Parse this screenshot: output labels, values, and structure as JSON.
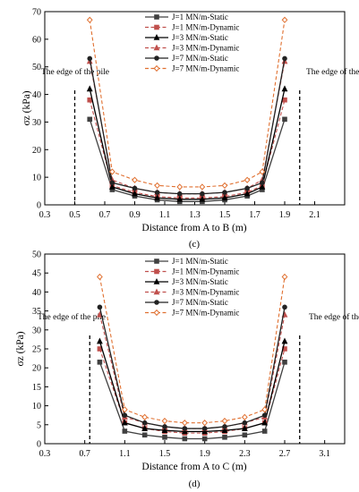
{
  "chart_data": [
    {
      "type": "line",
      "panel_label": "(c)",
      "xlabel": "Distance from A to B (m)",
      "ylabel": "σz (kPa)",
      "xlim": [
        0.3,
        2.3
      ],
      "ylim": [
        0,
        70
      ],
      "x_ticks": [
        "0.3",
        "0.5",
        "0.7",
        "0.9",
        "1.1",
        "1.3",
        "1.5",
        "1.7",
        "1.9",
        "2.1"
      ],
      "y_ticks": [
        "0",
        "10",
        "20",
        "30",
        "40",
        "50",
        "60",
        "70"
      ],
      "grid": false,
      "legend_position": "top-center",
      "pile_edges": [
        0.5,
        2.0
      ],
      "annotations": [
        "The edge of the pile",
        "The edge of the pile"
      ],
      "x": [
        0.6,
        0.75,
        0.9,
        1.05,
        1.2,
        1.35,
        1.5,
        1.65,
        1.75,
        1.9
      ],
      "series": [
        {
          "name": "J=1 MN/m-Static",
          "style": "solid",
          "color": "#404040",
          "marker": "square",
          "values": [
            31,
            5.5,
            3.2,
            1.8,
            1.2,
            1.2,
            1.8,
            3.2,
            5.5,
            31
          ]
        },
        {
          "name": "J=1 MN/m-Dynamic",
          "style": "dashed",
          "color": "#c0504d",
          "marker": "square",
          "values": [
            38,
            7,
            4.5,
            3,
            2.5,
            2.5,
            3,
            4.5,
            7,
            38
          ]
        },
        {
          "name": "J=3 MN/m-Static",
          "style": "solid",
          "color": "#000000",
          "marker": "triangle",
          "values": [
            42,
            6.5,
            4,
            2.5,
            2,
            2,
            2.5,
            4,
            6.5,
            42
          ]
        },
        {
          "name": "J=3 MN/m-Dynamic",
          "style": "dashed",
          "color": "#c0504d",
          "marker": "triangle",
          "values": [
            52,
            9,
            6,
            4.5,
            4,
            4,
            4.5,
            6,
            9,
            52
          ]
        },
        {
          "name": "J=7 MN/m-Static",
          "style": "solid",
          "color": "#222222",
          "marker": "circle",
          "values": [
            53,
            8,
            6,
            4.5,
            4,
            4,
            4.5,
            6,
            8,
            53
          ]
        },
        {
          "name": "J=7 MN/m-Dynamic",
          "style": "dashed",
          "color": "#e07030",
          "marker": "diamond",
          "values": [
            67,
            12,
            9,
            7,
            6.5,
            6.5,
            7,
            9,
            12,
            67
          ]
        }
      ]
    },
    {
      "type": "line",
      "panel_label": "(d)",
      "xlabel": "Distance from A to C (m)",
      "ylabel": "σz (kPa)",
      "xlim": [
        0.3,
        3.3
      ],
      "ylim": [
        0,
        50
      ],
      "x_ticks": [
        "0.3",
        "0.7",
        "1.1",
        "1.5",
        "1.9",
        "2.3",
        "2.7",
        "3.1"
      ],
      "y_ticks": [
        "0",
        "5",
        "10",
        "15",
        "20",
        "25",
        "30",
        "35",
        "40",
        "45",
        "50"
      ],
      "grid": false,
      "legend_position": "top-center",
      "pile_edges": [
        0.75,
        2.85
      ],
      "annotations": [
        "The edge of the pile",
        "The edge of the pile"
      ],
      "x": [
        0.85,
        1.1,
        1.3,
        1.5,
        1.7,
        1.9,
        2.1,
        2.3,
        2.5,
        2.7
      ],
      "series": [
        {
          "name": "J=1 MN/m-Static",
          "style": "solid",
          "color": "#404040",
          "marker": "square",
          "values": [
            21.5,
            3.3,
            2.3,
            1.7,
            1.3,
            1.3,
            1.7,
            2.3,
            3.3,
            21.5
          ]
        },
        {
          "name": "J=1 MN/m-Dynamic",
          "style": "dashed",
          "color": "#c0504d",
          "marker": "square",
          "values": [
            25,
            5.5,
            4,
            3.2,
            2.8,
            2.8,
            3.2,
            4,
            5.5,
            25
          ]
        },
        {
          "name": "J=3 MN/m-Static",
          "style": "solid",
          "color": "#000000",
          "marker": "triangle",
          "values": [
            27,
            5.5,
            4,
            3.5,
            3.2,
            3.2,
            3.5,
            4,
            5.5,
            27
          ]
        },
        {
          "name": "J=3 MN/m-Dynamic",
          "style": "dashed",
          "color": "#c0504d",
          "marker": "triangle",
          "values": [
            34,
            7,
            5.5,
            4.5,
            4,
            4,
            4.5,
            5.5,
            7,
            34
          ]
        },
        {
          "name": "J=7 MN/m-Static",
          "style": "solid",
          "color": "#222222",
          "marker": "circle",
          "values": [
            36,
            7.5,
            5.5,
            4.5,
            4,
            4,
            4.5,
            5.5,
            7.5,
            36
          ]
        },
        {
          "name": "J=7 MN/m-Dynamic",
          "style": "dashed",
          "color": "#e07030",
          "marker": "diamond",
          "values": [
            44,
            9,
            7,
            6,
            5.5,
            5.5,
            6,
            7,
            9,
            44
          ]
        }
      ]
    }
  ]
}
